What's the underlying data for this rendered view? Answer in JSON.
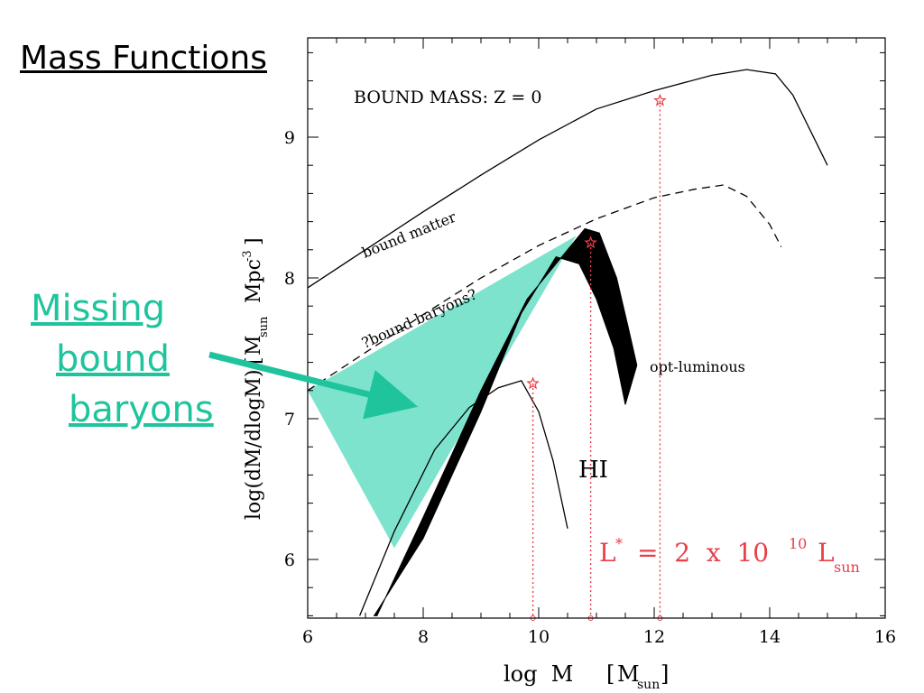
{
  "slide": {
    "title": "Mass Functions",
    "callout_lines": [
      "Missing",
      "bound",
      "baryons"
    ],
    "callout_color": "#1fc49c"
  },
  "chart_data": {
    "type": "line",
    "title": "BOUND MASS:  Z = 0",
    "xlabel_main": "log  M",
    "xlabel_unit": "M",
    "xlabel_unit_sub": "sun",
    "ylabel_main": "log(dM/dlogM)",
    "ylabel_unit": "M",
    "ylabel_unit_sub": "sun",
    "ylabel_unit_rest": "Mpc",
    "ylabel_unit_sup": "-3",
    "xlim": [
      6,
      16
    ],
    "ylim": [
      5.6,
      9.7
    ],
    "xticks": [
      "6",
      "8",
      "10",
      "12",
      "14",
      "16"
    ],
    "yticks": [
      "6",
      "7",
      "8",
      "9"
    ],
    "grid": false,
    "series": [
      {
        "name": "bound matter",
        "style": "solid",
        "x": [
          6,
          7,
          8,
          9,
          10,
          11,
          12,
          13,
          13.6,
          14.1,
          14.4,
          14.7,
          15.0
        ],
        "y": [
          7.93,
          8.2,
          8.47,
          8.73,
          8.98,
          9.2,
          9.33,
          9.44,
          9.48,
          9.45,
          9.3,
          9.05,
          8.8
        ]
      },
      {
        "name": "?bound baryons?",
        "style": "dashed",
        "x": [
          6,
          7,
          8,
          9,
          10,
          11,
          12,
          12.7,
          13.2,
          13.6,
          14.0,
          14.2
        ],
        "y": [
          7.2,
          7.47,
          7.74,
          8.0,
          8.23,
          8.42,
          8.57,
          8.63,
          8.66,
          8.58,
          8.38,
          8.22
        ]
      },
      {
        "name": "HI",
        "style": "solid",
        "x": [
          6.9,
          7.5,
          8.2,
          8.8,
          9.3,
          9.7,
          10.0,
          10.25,
          10.5
        ],
        "y": [
          5.6,
          6.2,
          6.78,
          7.08,
          7.22,
          7.27,
          7.05,
          6.7,
          6.22
        ]
      }
    ],
    "band": {
      "name": "opt-luminous",
      "upper_x": [
        7.2,
        8.0,
        9.0,
        9.8,
        10.4,
        10.8,
        11.05,
        11.35,
        11.55,
        11.7
      ],
      "upper_y": [
        5.6,
        6.3,
        7.2,
        7.85,
        8.15,
        8.35,
        8.32,
        8.0,
        7.65,
        7.38
      ],
      "lower_x": [
        11.5,
        11.3,
        11.0,
        10.7,
        10.3,
        9.7,
        9.0,
        8.0,
        7.15
      ],
      "lower_y": [
        7.1,
        7.5,
        7.85,
        8.1,
        8.15,
        7.75,
        7.05,
        6.15,
        5.6
      ],
      "color": "#000000"
    },
    "missing_region": {
      "x": [
        6.0,
        10.65,
        7.5
      ],
      "y": [
        7.2,
        8.3,
        6.08
      ],
      "color": "#7de3cc"
    },
    "markers": [
      {
        "x": 9.9,
        "y": 7.25
      },
      {
        "x": 10.9,
        "y": 8.25
      },
      {
        "x": 12.1,
        "y": 9.26
      }
    ],
    "marker_color": "#e8404a",
    "annotations": {
      "bound_matter": "bound matter",
      "bound_baryons": "?bound baryons?",
      "opt_luminous": "opt-luminous",
      "hi": "HI",
      "lstar_main": "L",
      "lstar_star": "*",
      "lstar_eq": "=  2  x  10",
      "lstar_exp": "10",
      "lstar_unit": "L",
      "lstar_sub": "sun"
    },
    "annotation_color": "#e8404a"
  }
}
